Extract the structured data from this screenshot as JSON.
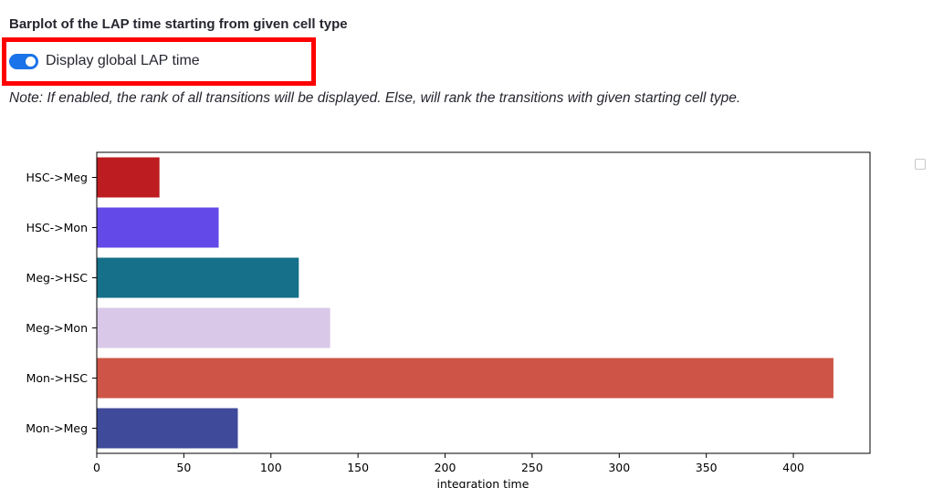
{
  "title": "Barplot of the LAP time starting from given cell type",
  "toggle": {
    "label": "Display global LAP time",
    "checked": true,
    "color": "#1a73e8"
  },
  "note": "Note: If enabled, the rank of all transitions will be displayed. Else, will rank the transitions with given starting cell type.",
  "chart_data": {
    "type": "bar",
    "orientation": "horizontal",
    "categories": [
      "HSC->Meg",
      "HSC->Mon",
      "Meg->HSC",
      "Meg->Mon",
      "Mon->HSC",
      "Mon->Meg"
    ],
    "values": [
      36,
      70,
      116,
      134,
      423,
      81
    ],
    "colors": [
      "#bd1c20",
      "#6249e8",
      "#16708a",
      "#d9c8e8",
      "#cd5446",
      "#3f4a9a"
    ],
    "xlabel": "integration time",
    "ylabel": "",
    "xlim": [
      0,
      444
    ],
    "xticks": [
      0,
      50,
      100,
      150,
      200,
      250,
      300,
      350,
      400
    ],
    "grid": false,
    "legend": "right-empty"
  }
}
